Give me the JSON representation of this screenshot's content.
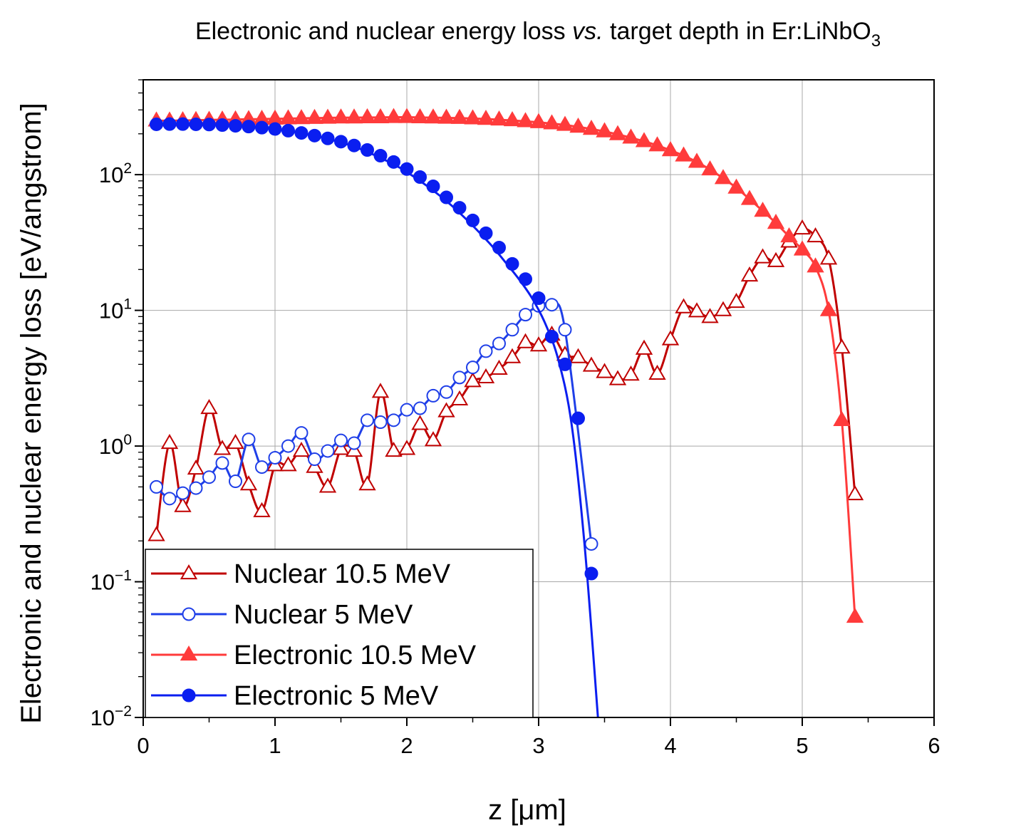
{
  "chart_data": {
    "type": "line",
    "title_main": "Electronic and nuclear energy loss ",
    "title_italic": "vs.",
    "title_rest": " target depth in Er:LiNbO",
    "title_sub": "3",
    "xlabel": "z [μm]",
    "ylabel": "Electronic and nuclear energy loss [eV/angstrom]",
    "xscale": "linear",
    "yscale": "log",
    "xlim": [
      0,
      6
    ],
    "ylim": [
      0.01,
      500
    ],
    "grid": true,
    "legend_position": "bottom-left",
    "x_ticks": [
      "0",
      "1",
      "2",
      "3",
      "4",
      "5",
      "6"
    ],
    "y_ticks": [
      {
        "base": "10",
        "exp": "−2",
        "value": 0.01
      },
      {
        "base": "10",
        "exp": "−1",
        "value": 0.1
      },
      {
        "base": "10",
        "exp": "0",
        "value": 1
      },
      {
        "base": "10",
        "exp": "1",
        "value": 10
      },
      {
        "base": "10",
        "exp": "2",
        "value": 100
      }
    ],
    "series": [
      {
        "name": "Nuclear 10.5 MeV",
        "color": "#c00000",
        "marker": "triangle-open",
        "x": [
          0.1,
          0.2,
          0.3,
          0.4,
          0.5,
          0.6,
          0.7,
          0.8,
          0.9,
          1.0,
          1.1,
          1.2,
          1.3,
          1.4,
          1.5,
          1.6,
          1.7,
          1.8,
          1.9,
          2.0,
          2.1,
          2.2,
          2.3,
          2.4,
          2.5,
          2.6,
          2.7,
          2.8,
          2.9,
          3.0,
          3.1,
          3.2,
          3.3,
          3.4,
          3.5,
          3.6,
          3.7,
          3.8,
          3.9,
          4.0,
          4.1,
          4.2,
          4.3,
          4.4,
          4.5,
          4.6,
          4.7,
          4.8,
          4.9,
          5.0,
          5.1,
          5.2,
          5.3,
          5.4
        ],
        "values": [
          0.22,
          1.05,
          0.36,
          0.68,
          1.9,
          0.95,
          1.05,
          0.52,
          0.33,
          0.72,
          0.72,
          0.92,
          0.7,
          0.5,
          0.95,
          0.92,
          0.52,
          2.5,
          0.92,
          0.95,
          1.45,
          1.1,
          1.8,
          2.2,
          3.0,
          3.2,
          3.7,
          4.5,
          5.8,
          5.5,
          6.6,
          4.7,
          4.5,
          3.9,
          3.5,
          3.1,
          3.35,
          5.2,
          3.4,
          6.1,
          10.5,
          9.8,
          8.9,
          10.0,
          11.5,
          18.0,
          24.5,
          23.0,
          32.0,
          40.0,
          35.0,
          24.0,
          5.3,
          0.44
        ]
      },
      {
        "name": "Nuclear 5 MeV",
        "color": "#1f3fe8",
        "marker": "circle-open",
        "x": [
          0.1,
          0.2,
          0.3,
          0.4,
          0.5,
          0.6,
          0.7,
          0.8,
          0.9,
          1.0,
          1.1,
          1.2,
          1.3,
          1.4,
          1.5,
          1.6,
          1.7,
          1.8,
          1.9,
          2.0,
          2.1,
          2.2,
          2.3,
          2.4,
          2.5,
          2.6,
          2.7,
          2.8,
          2.9,
          3.0,
          3.1,
          3.2,
          3.4
        ],
        "values": [
          0.5,
          0.41,
          0.45,
          0.49,
          0.59,
          0.75,
          0.55,
          1.12,
          0.7,
          0.82,
          1.0,
          1.25,
          0.8,
          0.92,
          1.1,
          1.05,
          1.55,
          1.5,
          1.55,
          1.85,
          1.9,
          2.35,
          2.5,
          3.2,
          3.8,
          5.0,
          5.7,
          7.2,
          9.3,
          10.8,
          11.0,
          7.2,
          0.19
        ]
      },
      {
        "name": "Electronic 10.5 MeV",
        "color": "#ff3b3b",
        "marker": "triangle-filled",
        "x": [
          0.1,
          0.2,
          0.3,
          0.4,
          0.5,
          0.6,
          0.7,
          0.8,
          0.9,
          1.0,
          1.1,
          1.2,
          1.3,
          1.4,
          1.5,
          1.6,
          1.7,
          1.8,
          1.9,
          2.0,
          2.1,
          2.2,
          2.3,
          2.4,
          2.5,
          2.6,
          2.7,
          2.8,
          2.9,
          3.0,
          3.1,
          3.2,
          3.3,
          3.4,
          3.5,
          3.6,
          3.7,
          3.8,
          3.9,
          4.0,
          4.1,
          4.2,
          4.3,
          4.4,
          4.5,
          4.6,
          4.7,
          4.8,
          4.9,
          5.0,
          5.1,
          5.2,
          5.3,
          5.4
        ],
        "values": [
          250,
          250,
          251,
          252,
          253,
          254,
          255,
          256,
          257,
          258,
          259,
          260,
          261,
          262,
          263,
          263,
          264,
          264,
          265,
          265,
          264,
          263,
          262,
          261,
          259,
          257,
          254,
          251,
          247,
          243,
          238,
          232,
          225,
          217,
          208,
          198,
          187,
          176,
          164,
          151,
          138,
          124,
          109,
          94,
          80,
          66,
          54,
          44,
          35,
          28,
          21,
          10.0,
          1.55,
          0.055
        ]
      },
      {
        "name": "Electronic 5 MeV",
        "color": "#0a1ef0",
        "marker": "circle-filled",
        "x": [
          0.05,
          0.15,
          0.25,
          0.35,
          0.45,
          0.55,
          0.65,
          0.75,
          0.85,
          0.95,
          1.05,
          1.15,
          1.25,
          1.35,
          1.45,
          1.55,
          1.65,
          1.75,
          1.85,
          1.95,
          2.05,
          2.15,
          2.25,
          2.35,
          2.45,
          2.55,
          2.65,
          2.75,
          2.85,
          2.95,
          3.05,
          3.15,
          3.25,
          3.35,
          3.45
        ],
        "values": [
          236,
          237,
          238,
          237,
          236,
          234,
          232,
          228,
          224,
          220,
          214,
          206,
          198,
          189,
          178,
          167,
          154,
          140,
          126,
          112,
          97,
          83,
          70,
          58,
          47,
          37.5,
          29.5,
          22.5,
          17,
          12.3,
          8.0,
          4.3,
          1.45,
          0.18,
          0.01
        ]
      }
    ]
  },
  "electronic_5_points_x": [
    0.1,
    0.2,
    0.3,
    0.4,
    0.5,
    0.6,
    0.7,
    0.8,
    0.9,
    1.0,
    1.1,
    1.2,
    1.3,
    1.4,
    1.5,
    1.6,
    1.7,
    1.8,
    1.9,
    2.0,
    2.1,
    2.2,
    2.3,
    2.4,
    2.5,
    2.6,
    2.7,
    2.8,
    2.9,
    3.0,
    3.1,
    3.2,
    3.3,
    3.4
  ],
  "electronic_5_points_y": [
    235,
    236,
    236,
    235,
    234,
    232,
    229,
    226,
    222,
    217,
    211,
    203,
    194,
    185,
    175,
    164,
    152,
    138,
    124,
    110,
    96,
    82,
    68,
    57,
    46,
    37,
    29,
    22,
    17,
    12.3,
    6.4,
    4.0,
    1.6,
    0.115
  ]
}
